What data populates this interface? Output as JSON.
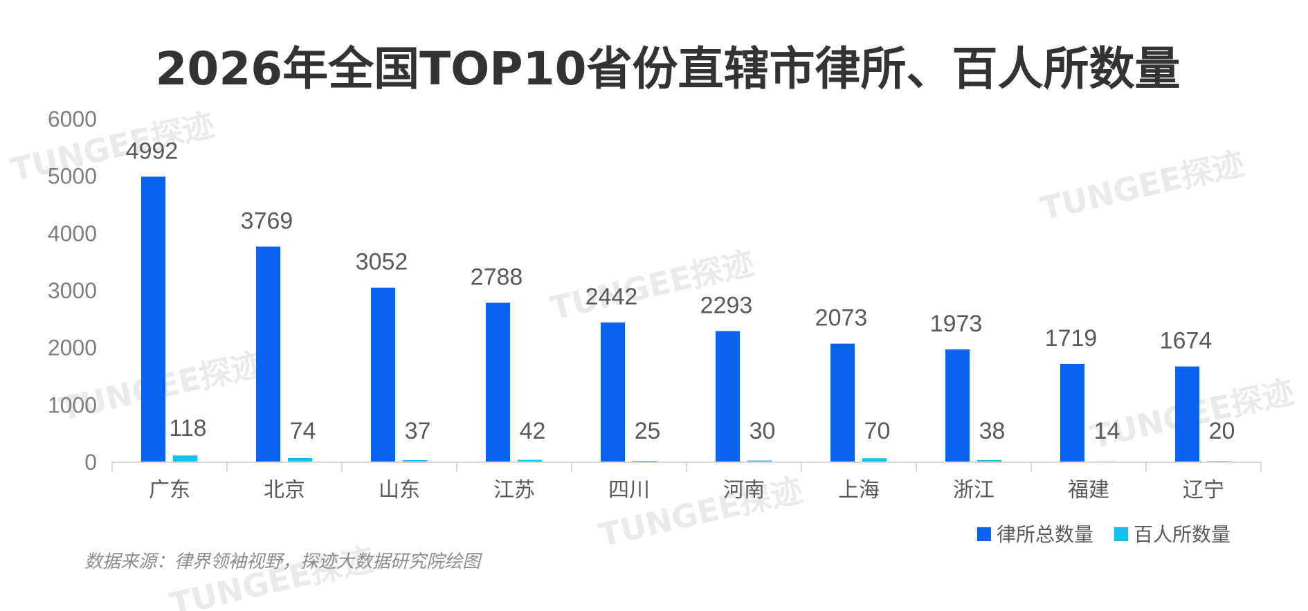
{
  "chart_data": {
    "type": "bar",
    "title": "2026年全国TOP10省份直辖市律所、百人所数量",
    "categories": [
      "广东",
      "北京",
      "山东",
      "江苏",
      "四川",
      "河南",
      "上海",
      "浙江",
      "福建",
      "辽宁"
    ],
    "series": [
      {
        "name": "律所总数量",
        "values": [
          4992,
          3769,
          3052,
          2788,
          2442,
          2293,
          2073,
          1973,
          1719,
          1674
        ],
        "color": "#0a63f0"
      },
      {
        "name": "百人所数量",
        "values": [
          118,
          74,
          37,
          42,
          25,
          30,
          70,
          38,
          14,
          20
        ],
        "color": "#13c1f0"
      }
    ],
    "ylim": [
      0,
      6000
    ],
    "yticks": [
      0,
      1000,
      2000,
      3000,
      4000,
      5000,
      6000
    ],
    "grid": false,
    "legend_position": "bottom-right",
    "xlabel": "",
    "ylabel": ""
  },
  "source": "数据来源：律界领袖视野，探迹大数据研究院绘图",
  "watermark": "TUNGEE探迹"
}
